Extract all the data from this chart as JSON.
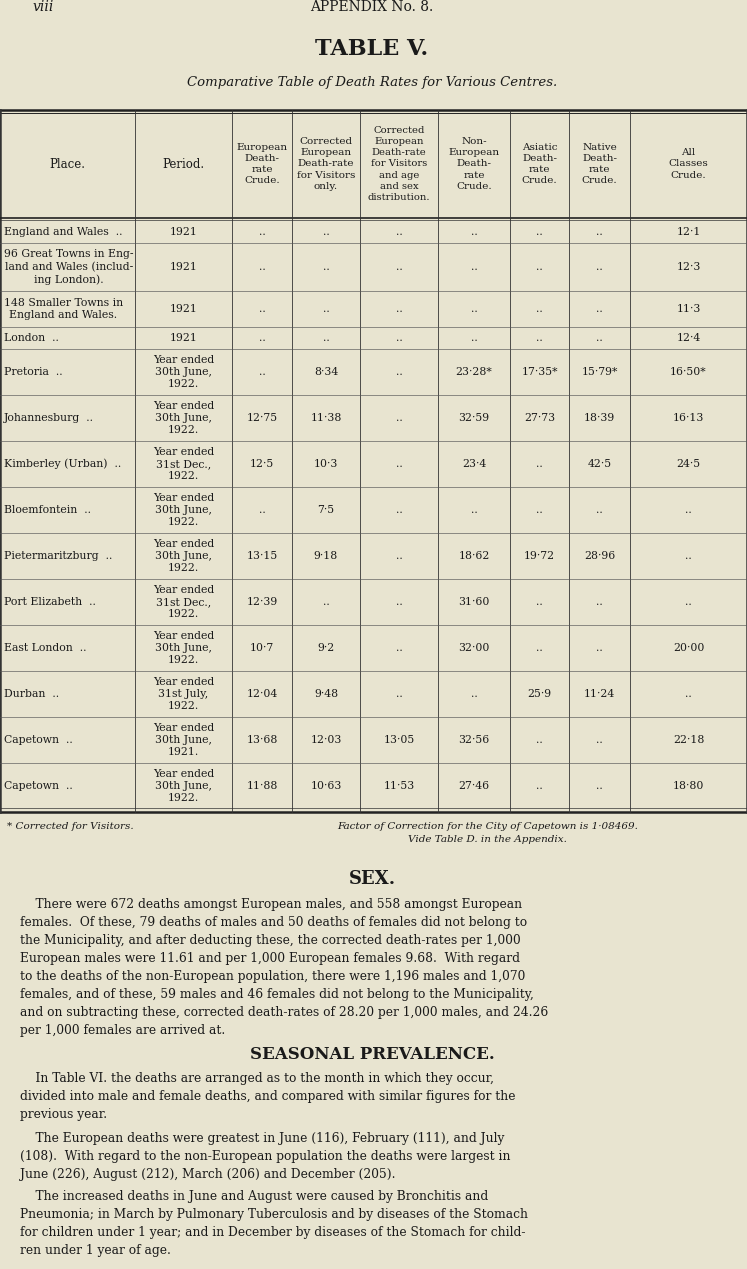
{
  "page_header_left": "viii",
  "page_header_center": "APPENDIX No. 8.",
  "table_title": "TABLE V.",
  "table_subtitle": "Comparative Table of Death Rates for Various Centres.",
  "bg_color": "#e8e4d0",
  "text_color": "#1a1a1a",
  "col_headers": [
    "Place.",
    "Period.",
    "European\nDeath-\nrate\nCrude.",
    "Corrected\nEuropean\nDeath-rate\nfor Visitors\nonly.",
    "Corrected\nEuropean\nDeath-rate\nfor Visitors\nand age\nand sex\ndistribution.",
    "Non-\nEuropean\nDeath-\nrate\nCrude.",
    "Asiatic\nDeath-\nrate\nCrude.",
    "Native\nDeath-\nrate\nCrude.",
    "All\nClasses\nCrude."
  ],
  "rows": [
    {
      "place": "England and Wales  ..",
      "period": "1921",
      "eu_crude": "..",
      "corr_eu_visitors": "..",
      "corr_eu_age_sex": "..",
      "non_eu": "..",
      "asiatic": "..",
      "native": "..",
      "all_classes": "12·1"
    },
    {
      "place": "96 Great Towns in Eng-\nland and Wales (includ-\ning London).",
      "period": "1921",
      "eu_crude": "..",
      "corr_eu_visitors": "..",
      "corr_eu_age_sex": "..",
      "non_eu": "..",
      "asiatic": "..",
      "native": "..",
      "all_classes": "12·3"
    },
    {
      "place": "148 Smaller Towns in\nEngland and Wales.",
      "period": "1921",
      "eu_crude": "..",
      "corr_eu_visitors": "..",
      "corr_eu_age_sex": "..",
      "non_eu": "..",
      "asiatic": "..",
      "native": "..",
      "all_classes": "11·3"
    },
    {
      "place": "London  ..",
      "period": "1921",
      "eu_crude": "..",
      "corr_eu_visitors": "..",
      "corr_eu_age_sex": "..",
      "non_eu": "..",
      "asiatic": "..",
      "native": "..",
      "all_classes": "12·4"
    },
    {
      "place": "Pretoria  ..",
      "period": "Year ended\n30th June,\n1922.",
      "eu_crude": "..",
      "corr_eu_visitors": "8·34",
      "corr_eu_age_sex": "..",
      "non_eu": "23·28*",
      "asiatic": "17·35*",
      "native": "15·79*",
      "all_classes": "16·50*"
    },
    {
      "place": "Johannesburg  ..",
      "period": "Year ended\n30th June,\n1922.",
      "eu_crude": "12·75",
      "corr_eu_visitors": "11·38",
      "corr_eu_age_sex": "..",
      "non_eu": "32·59",
      "asiatic": "27·73",
      "native": "18·39",
      "all_classes": "16·13"
    },
    {
      "place": "Kimberley (Urban)  ..",
      "period": "Year ended\n31st Dec.,\n1922.",
      "eu_crude": "12·5",
      "corr_eu_visitors": "10·3",
      "corr_eu_age_sex": "..",
      "non_eu": "23·4",
      "asiatic": "..",
      "native": "42·5",
      "all_classes": "24·5"
    },
    {
      "place": "Bloemfontein  ..",
      "period": "Year ended\n30th June,\n1922.",
      "eu_crude": "..",
      "corr_eu_visitors": "7·5",
      "corr_eu_age_sex": "..",
      "non_eu": "..",
      "asiatic": "..",
      "native": "..",
      "all_classes": ".."
    },
    {
      "place": "Pietermaritzburg  ..",
      "period": "Year ended\n30th June,\n1922.",
      "eu_crude": "13·15",
      "corr_eu_visitors": "9·18",
      "corr_eu_age_sex": "..",
      "non_eu": "18·62",
      "asiatic": "19·72",
      "native": "28·96",
      "all_classes": ".."
    },
    {
      "place": "Port Elizabeth  ..",
      "period": "Year ended\n31st Dec.,\n1922.",
      "eu_crude": "12·39",
      "corr_eu_visitors": "..",
      "corr_eu_age_sex": "..",
      "non_eu": "31·60",
      "asiatic": "..",
      "native": "..",
      "all_classes": ".."
    },
    {
      "place": "East London  ..",
      "period": "Year ended\n30th June,\n1922.",
      "eu_crude": "10·7",
      "corr_eu_visitors": "9·2",
      "corr_eu_age_sex": "..",
      "non_eu": "32·00",
      "asiatic": "..",
      "native": "..",
      "all_classes": "20·00"
    },
    {
      "place": "Durban  ..",
      "period": "Year ended\n31st July,\n1922.",
      "eu_crude": "12·04",
      "corr_eu_visitors": "9·48",
      "corr_eu_age_sex": "..",
      "non_eu": "..",
      "asiatic": "25·9",
      "native": "11·24",
      "all_classes": ".."
    },
    {
      "place": "Capetown  ..",
      "period": "Year ended\n30th June,\n1921.",
      "eu_crude": "13·68",
      "corr_eu_visitors": "12·03",
      "corr_eu_age_sex": "13·05",
      "non_eu": "32·56",
      "asiatic": "..",
      "native": "..",
      "all_classes": "22·18"
    },
    {
      "place": "Capetown  ..",
      "period": "Year ended\n30th June,\n1922.",
      "eu_crude": "11·88",
      "corr_eu_visitors": "10·63",
      "corr_eu_age_sex": "11·53",
      "non_eu": "27·46",
      "asiatic": "..",
      "native": "..",
      "all_classes": "18·80"
    }
  ],
  "footnote_left": "* Corrected for Visitors.",
  "footnote_right": "Factor of Correction for the City of Capetown is 1·08469.\nVide Table D. in the Appendix.",
  "sex_heading": "SEX.",
  "sex_para": "    There were 672 deaths amongst European males, and 558 amongst European\nfemales.  Of these, 79 deaths of males and 50 deaths of females did not belong to\nthe Municipality, and after deducting these, the corrected death-rates per 1,000\nEuropean males were 11.61 and per 1,000 European females 9.68.  With regard\nto the deaths of the non-European population, there were 1,196 males and 1,070\nfemales, and of these, 59 males and 46 females did not belong to the Municipality,\nand on subtracting these, corrected death-rates of 28.20 per 1,000 males, and 24.26\nper 1,000 females are arrived at.",
  "seasonal_heading": "SEASONAL PREVALENCE.",
  "seasonal_para1": "    In Table VI. the deaths are arranged as to the month in which they occur,\ndivided into male and female deaths, and compared with similar figures for the\nprevious year.",
  "seasonal_para2": "    The European deaths were greatest in June (116), February (111), and July\n(108).  With regard to the non-European population the deaths were largest in\nJune (226), August (212), March (206) and December (205).",
  "seasonal_para3": "    The increased deaths in June and August were caused by Bronchitis and\nPneumonia; in March by Pulmonary Tuberculosis and by diseases of the Stomach\nfor children under 1 year; and in December by diseases of the Stomach for child-\nren under 1 year of age."
}
